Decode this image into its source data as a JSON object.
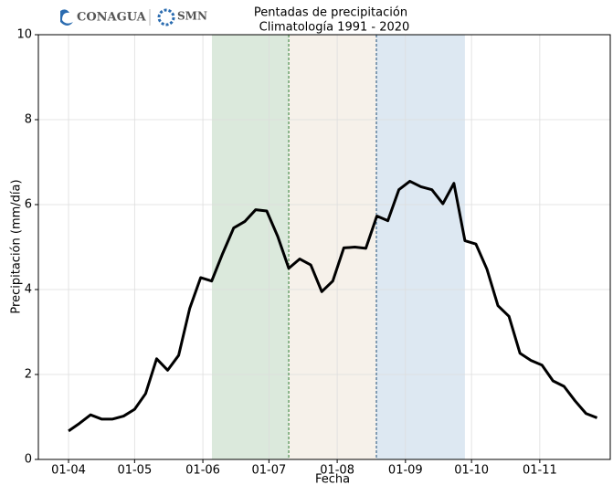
{
  "chart_data": {
    "type": "line",
    "title": "Pentadas de precipitación",
    "subtitle": "Climatología 1991 - 2020",
    "logos": [
      "CONAGUA",
      "SMN"
    ],
    "x_label": "Fecha",
    "y_label": "Precipitación (mm/día)",
    "x": [
      91,
      96,
      101,
      106,
      111,
      116,
      121,
      126,
      131,
      136,
      141,
      146,
      151,
      156,
      161,
      166,
      171,
      176,
      181,
      186,
      191,
      196,
      201,
      206,
      211,
      216,
      221,
      226,
      231,
      236,
      241,
      246,
      251,
      256,
      261,
      266,
      271,
      276,
      281,
      286,
      291,
      296,
      301,
      306,
      311,
      316,
      321,
      326,
      331
    ],
    "values": [
      0.67,
      0.85,
      1.05,
      0.95,
      0.95,
      1.02,
      1.18,
      1.55,
      2.37,
      2.1,
      2.45,
      3.55,
      4.28,
      4.2,
      4.85,
      5.45,
      5.6,
      5.88,
      5.85,
      5.25,
      4.5,
      4.72,
      4.58,
      3.95,
      4.2,
      4.98,
      5.0,
      4.97,
      5.73,
      5.62,
      6.35,
      6.55,
      6.42,
      6.35,
      6.02,
      6.5,
      5.15,
      5.07,
      4.48,
      3.62,
      3.37,
      2.5,
      2.33,
      2.22,
      1.85,
      1.72,
      1.38,
      1.08,
      0.98
    ],
    "color": "#000000",
    "bands": [
      {
        "start": 156.1,
        "end": 191,
        "color": "#dbe9dc"
      },
      {
        "start": 191,
        "end": 230.8,
        "color": "#f6f1ea"
      },
      {
        "start": 230.8,
        "end": 271,
        "color": "#dde8f2"
      }
    ],
    "dividers": [
      {
        "x": 191,
        "color": "#2e7d32"
      },
      {
        "x": 230.8,
        "color": "#1f4e79"
      }
    ],
    "xlim": [
      77.3,
      337
    ],
    "xticks": [
      {
        "value": 91,
        "label": "01-04"
      },
      {
        "value": 121,
        "label": "01-05"
      },
      {
        "value": 152,
        "label": "01-06"
      },
      {
        "value": 182,
        "label": "01-07"
      },
      {
        "value": 213,
        "label": "01-08"
      },
      {
        "value": 244,
        "label": "01-09"
      },
      {
        "value": 274,
        "label": "01-10"
      },
      {
        "value": 305,
        "label": "01-11"
      }
    ],
    "ylim": [
      0,
      10
    ],
    "yticks": [
      0,
      2,
      4,
      6,
      8,
      10
    ],
    "grid": true
  }
}
